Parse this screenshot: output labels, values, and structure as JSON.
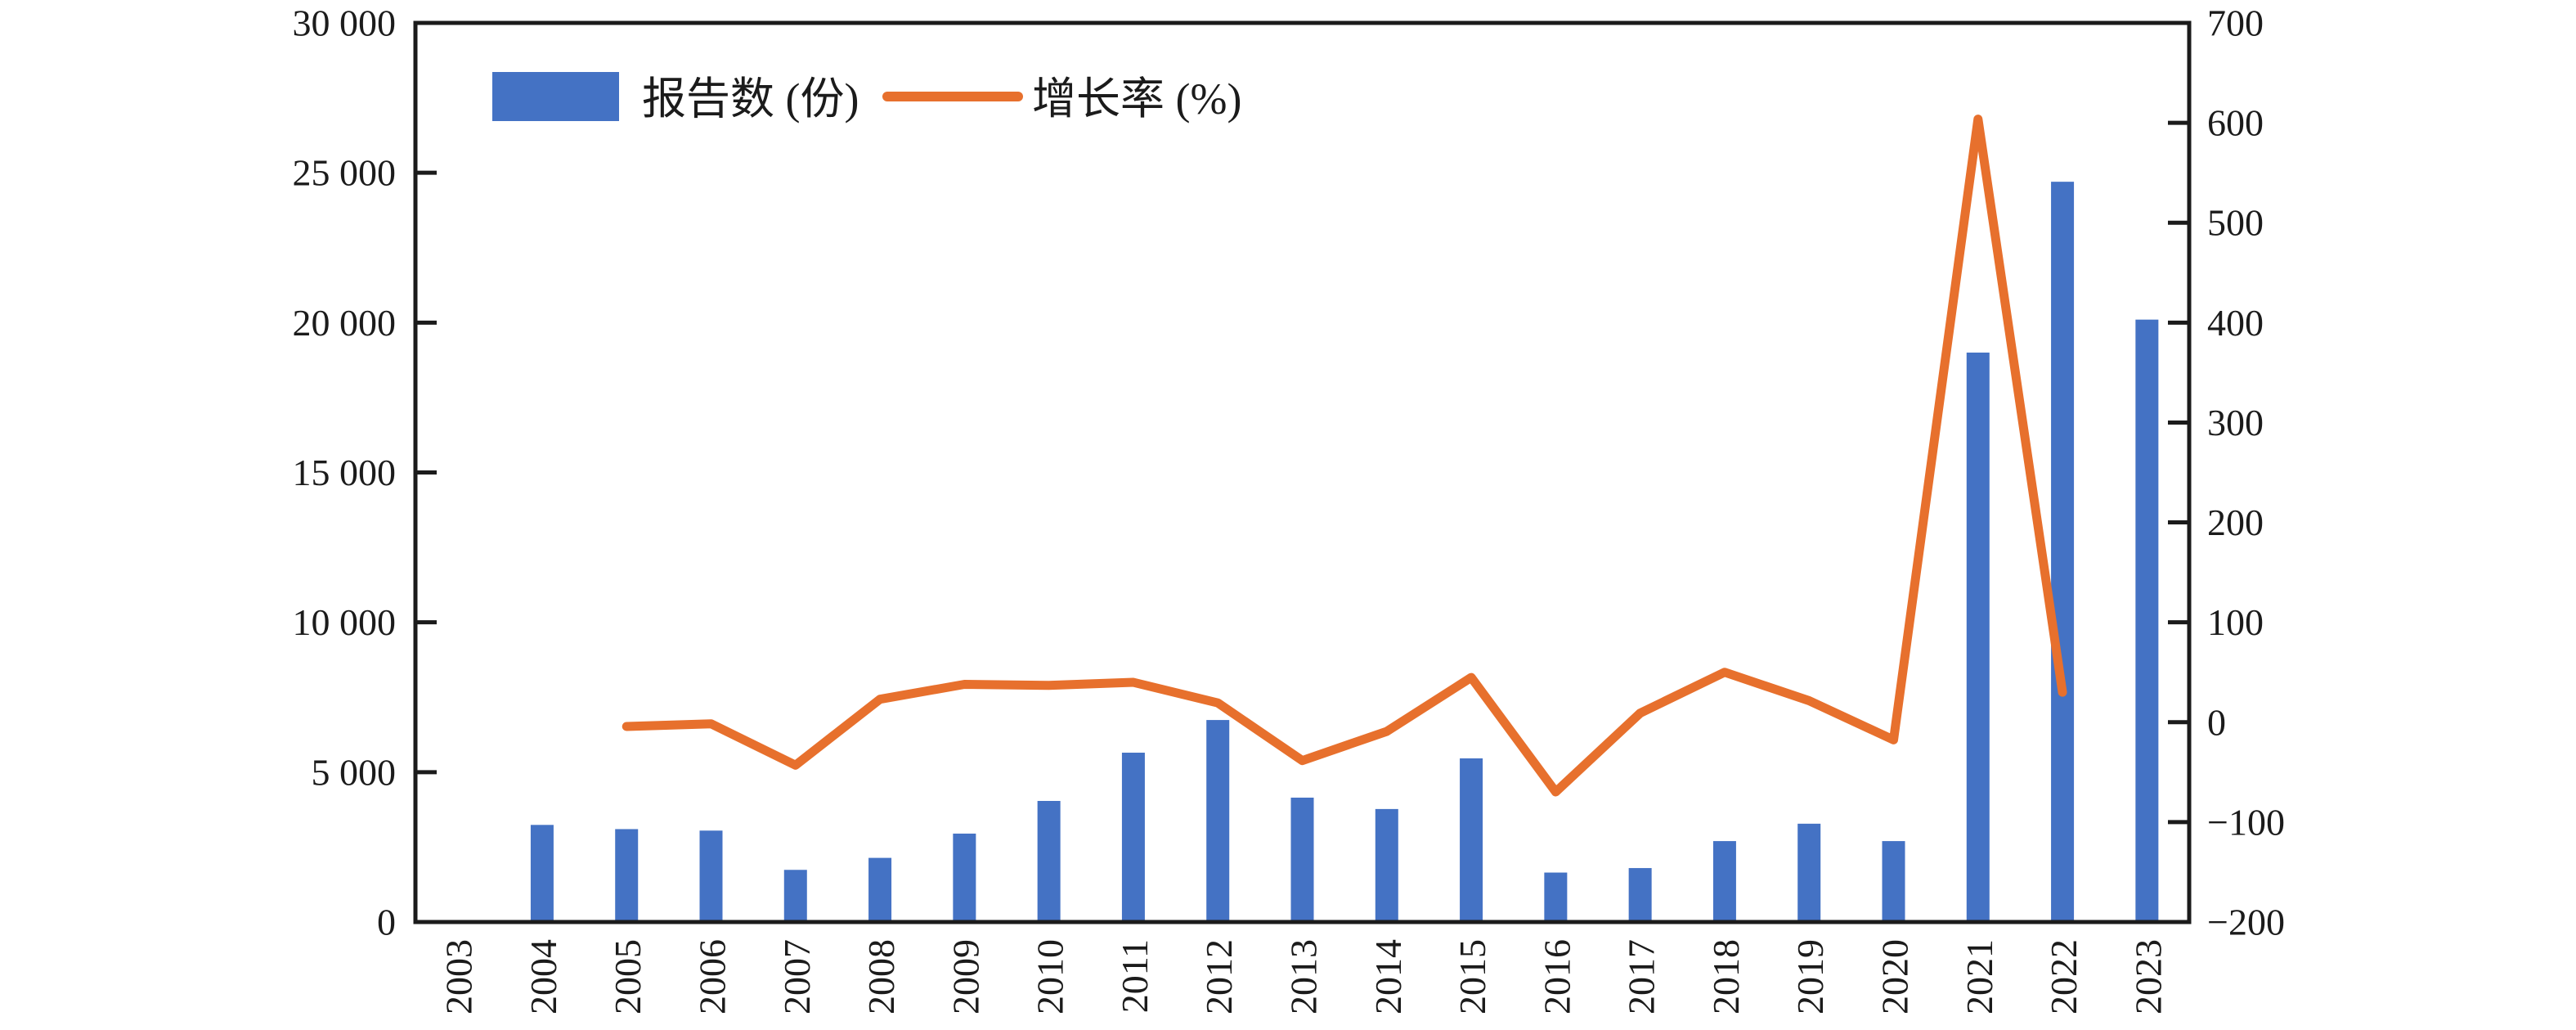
{
  "chart_data": {
    "type": "bar+line",
    "title": "",
    "categories": [
      "2003",
      "2004",
      "2005",
      "2006",
      "2007",
      "2008",
      "2009",
      "2010",
      "2011",
      "2012",
      "2013",
      "2014",
      "2015",
      "2016",
      "2017",
      "2018",
      "2019",
      "2020",
      "2021",
      "2022",
      "2023"
    ],
    "series": [
      {
        "name": "报告数 (份)",
        "type": "bar",
        "axis": "left",
        "color": "#4472c4",
        "values": [
          0,
          3240,
          3100,
          3050,
          1740,
          2140,
          2950,
          4040,
          5650,
          6740,
          4150,
          3770,
          5460,
          1650,
          1800,
          2700,
          3280,
          2700,
          19000,
          24700,
          20100
        ]
      },
      {
        "name": "增长率 (%)",
        "type": "line",
        "axis": "right",
        "color": "#e7702d",
        "values": [
          null,
          null,
          -4.3,
          -1.6,
          -43.0,
          23.0,
          37.9,
          36.9,
          39.9,
          19.3,
          -38.4,
          -9.2,
          44.8,
          -69.8,
          9.1,
          50.0,
          21.5,
          -17.7,
          603.7,
          30.0,
          null
        ]
      }
    ],
    "left_axis": {
      "min": 0,
      "max": 30000,
      "step": 5000,
      "tick_labels": [
        "0",
        "5 000",
        "10 000",
        "15 000",
        "20 000",
        "25 000",
        "30 000"
      ]
    },
    "right_axis": {
      "min": -200,
      "max": 700,
      "step": 100,
      "tick_labels": [
        "−200",
        "−100",
        "0",
        "100",
        "200",
        "300",
        "400",
        "500",
        "600",
        "700"
      ]
    },
    "legend": {
      "position": "top-left"
    },
    "grid": false,
    "frame_color": "#1b1b1b"
  }
}
